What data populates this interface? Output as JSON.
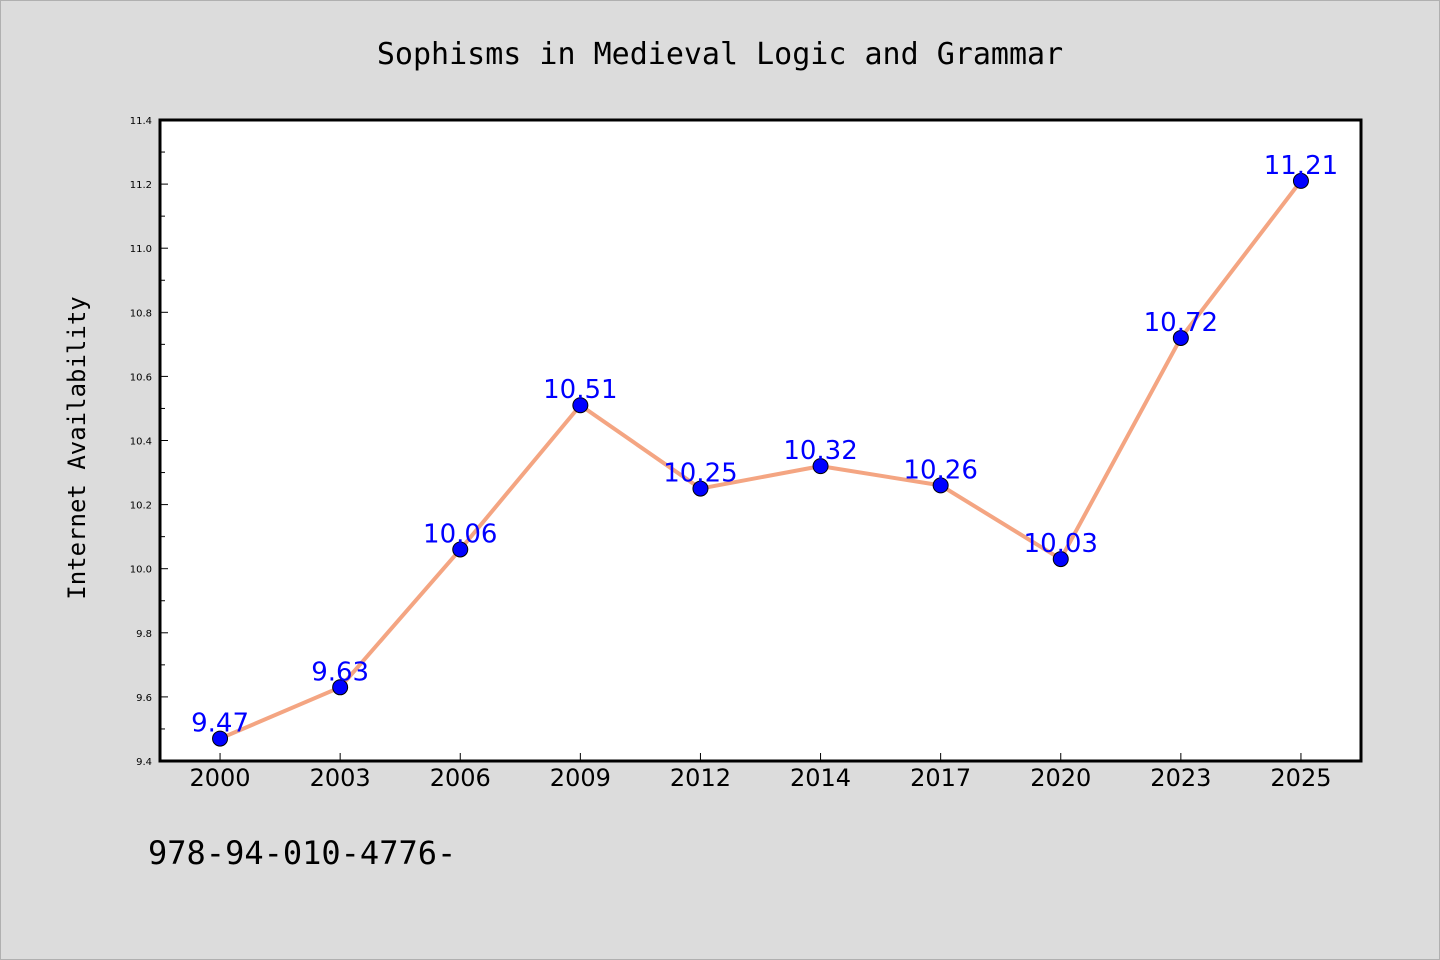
{
  "chart_data": {
    "type": "line",
    "title": "Sophisms in Medieval Logic and Grammar",
    "xlabel": "",
    "ylabel": "Internet Availability",
    "categories": [
      "2000",
      "2003",
      "2006",
      "2009",
      "2012",
      "2014",
      "2017",
      "2020",
      "2023",
      "2025"
    ],
    "series": [
      {
        "values": [
          9.47,
          9.63,
          10.06,
          10.51,
          10.25,
          10.32,
          10.26,
          10.03,
          10.72,
          11.21
        ],
        "line_color": "#f4a582",
        "marker_color": "#0000ff"
      }
    ],
    "data_labels": [
      "9.47",
      "9.63",
      "10.06",
      "10.51",
      "10.25",
      "10.32",
      "10.26",
      "10.03",
      "10.72",
      "11.21"
    ],
    "ylim": [
      9.4,
      11.4
    ],
    "yticks": [
      "9.4",
      "9.6",
      "9.8",
      "10.0",
      "10.2",
      "10.4",
      "10.6",
      "10.8",
      "11.0",
      "11.2",
      "11.4"
    ],
    "grid": false,
    "legend": "none"
  },
  "footer_text": "978-94-010-4776-",
  "colors": {
    "background": "#dcdcdc",
    "plot_background": "#ffffff",
    "line": "#f4a582",
    "marker": "#0000ff",
    "data_label": "#0000ff"
  }
}
